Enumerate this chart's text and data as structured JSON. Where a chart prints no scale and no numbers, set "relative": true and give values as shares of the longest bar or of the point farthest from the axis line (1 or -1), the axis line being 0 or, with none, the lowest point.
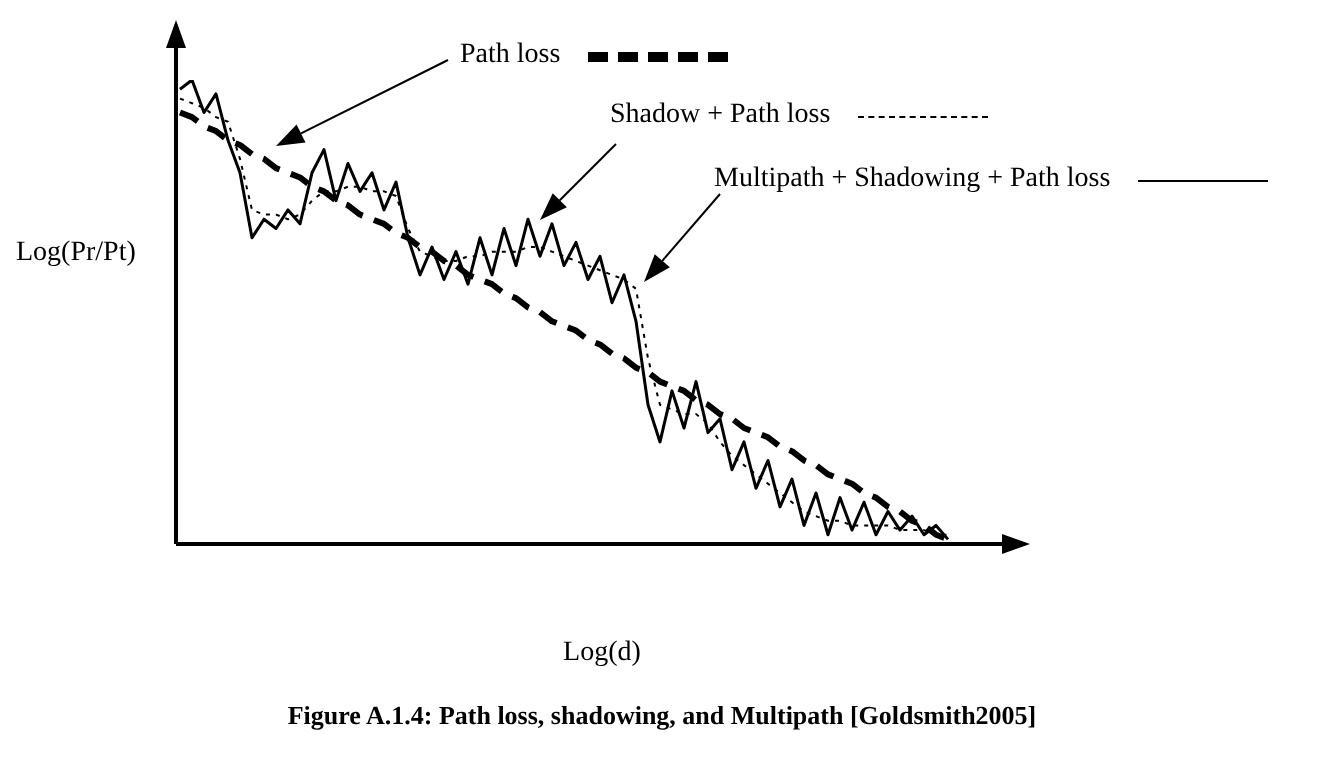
{
  "chart_data": {
    "type": "line",
    "relative": true,
    "xlabel": "Log(d)",
    "ylabel": "Log(Pr/Pt)",
    "legend": "top right",
    "grid": false,
    "tick_labels": false,
    "marker": "none",
    "annotations": [
      "Figure A.1.4: Path loss, shadowing, and Multipath [Goldsmith2005]"
    ],
    "categories": [
      null,
      null,
      null,
      null,
      null,
      null,
      null,
      null,
      null,
      null,
      null,
      null,
      null,
      null,
      null,
      null,
      null,
      null,
      null,
      null,
      null,
      null,
      null,
      null,
      null,
      null,
      null,
      null,
      null,
      null,
      null,
      null,
      null,
      null,
      null,
      null,
      null,
      null,
      null,
      null,
      null,
      null,
      null,
      null,
      null,
      null,
      null,
      null,
      null,
      null,
      null,
      null,
      null,
      null,
      null,
      null,
      null,
      null,
      null,
      null,
      null,
      null,
      null,
      null,
      null
    ],
    "series": [
      {
        "name": "Path loss",
        "color": "#000000",
        "line_style": "dashed",
        "values": [
          0.93,
          0.92,
          0.9,
          0.89,
          0.87,
          0.86,
          0.84,
          0.83,
          0.81,
          0.8,
          0.79,
          0.77,
          0.76,
          0.74,
          0.73,
          0.71,
          0.7,
          0.69,
          0.67,
          0.66,
          0.64,
          0.63,
          0.61,
          0.6,
          0.58,
          0.57,
          0.56,
          0.54,
          0.53,
          0.51,
          0.5,
          0.48,
          0.47,
          0.46,
          0.44,
          0.43,
          0.41,
          0.4,
          0.38,
          0.37,
          0.35,
          0.34,
          0.33,
          0.31,
          0.3,
          0.28,
          0.27,
          0.25,
          0.24,
          0.23,
          0.21,
          0.2,
          0.18,
          0.17,
          0.15,
          0.14,
          0.13,
          0.11,
          0.1,
          0.08,
          0.07,
          0.05,
          0.04,
          0.02,
          0.01
        ]
      },
      {
        "name": "Shadow + Path loss",
        "color": "#000000",
        "line_style": "dotted",
        "values": [
          0.96,
          0.95,
          0.94,
          0.92,
          0.91,
          0.83,
          0.72,
          0.71,
          0.71,
          0.7,
          0.71,
          0.74,
          0.76,
          0.76,
          0.77,
          0.77,
          0.76,
          0.76,
          0.75,
          0.68,
          0.63,
          0.62,
          0.61,
          0.61,
          0.62,
          0.62,
          0.63,
          0.63,
          0.63,
          0.64,
          0.64,
          0.63,
          0.62,
          0.61,
          0.6,
          0.59,
          0.58,
          0.57,
          0.55,
          0.4,
          0.3,
          0.29,
          0.28,
          0.28,
          0.26,
          0.22,
          0.19,
          0.17,
          0.15,
          0.13,
          0.11,
          0.09,
          0.07,
          0.06,
          0.05,
          0.05,
          0.04,
          0.04,
          0.04,
          0.04,
          0.03,
          0.03,
          0.03,
          0.02,
          0.02
        ]
      },
      {
        "name": "Multipath + Shadowing + Path loss",
        "color": "#000000",
        "line_style": "solid",
        "values": [
          0.98,
          1.0,
          0.93,
          0.97,
          0.87,
          0.8,
          0.66,
          0.7,
          0.68,
          0.72,
          0.69,
          0.8,
          0.85,
          0.74,
          0.82,
          0.76,
          0.8,
          0.72,
          0.78,
          0.66,
          0.58,
          0.64,
          0.57,
          0.63,
          0.56,
          0.66,
          0.58,
          0.68,
          0.6,
          0.7,
          0.62,
          0.69,
          0.6,
          0.65,
          0.57,
          0.62,
          0.52,
          0.58,
          0.48,
          0.3,
          0.22,
          0.33,
          0.25,
          0.35,
          0.24,
          0.27,
          0.16,
          0.22,
          0.12,
          0.18,
          0.08,
          0.14,
          0.04,
          0.11,
          0.02,
          0.1,
          0.03,
          0.09,
          0.02,
          0.07,
          0.03,
          0.06,
          0.02,
          0.04,
          0.01
        ]
      }
    ]
  }
}
